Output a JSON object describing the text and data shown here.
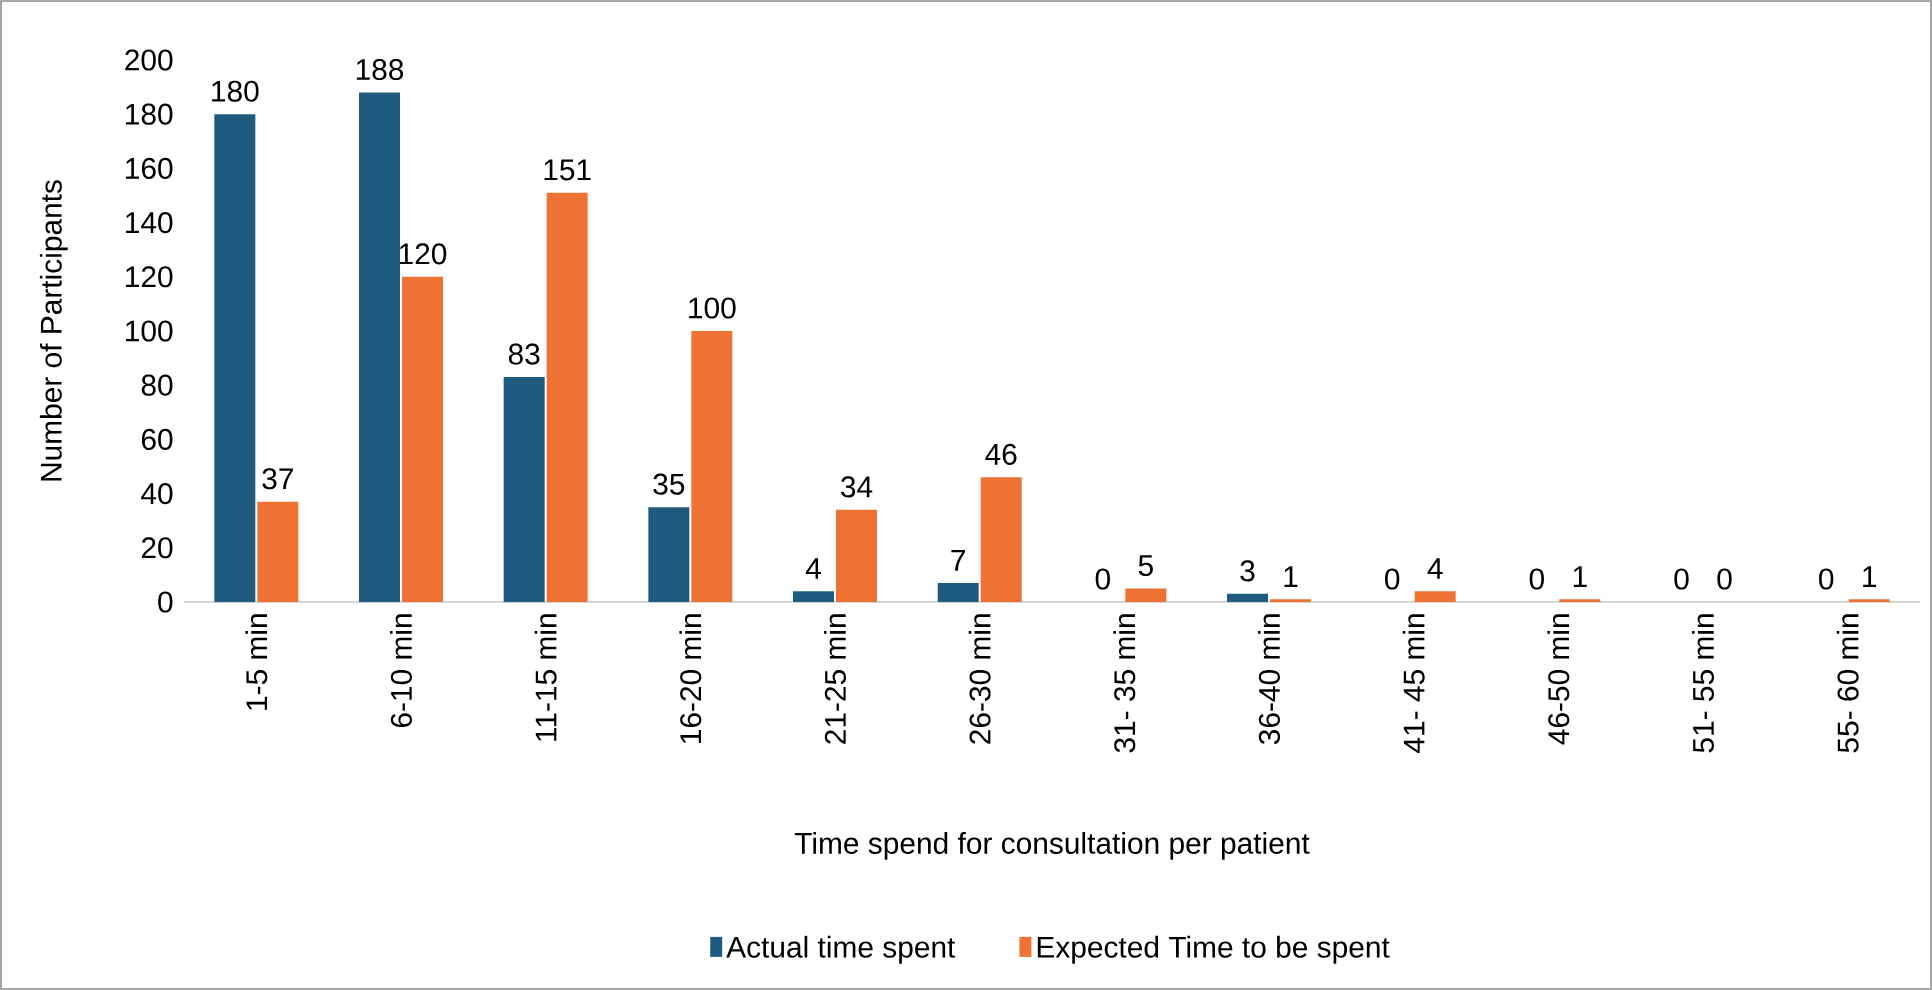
{
  "chart_data": {
    "type": "bar",
    "xlabel": "Time spend for consultation per patient",
    "ylabel": "Number of Participants",
    "categories": [
      "1-5 min",
      "6-10 min",
      "11-15 min",
      "16-20 min",
      "21-25 min",
      "26-30 min",
      "31- 35 min",
      "36-40 min",
      "41- 45 min",
      "46-50 min",
      "51- 55 min",
      "55- 60 min"
    ],
    "series": [
      {
        "name": "Actual time spent",
        "color": "#1f5b7f",
        "values": [
          180,
          188,
          83,
          35,
          4,
          7,
          0,
          3,
          0,
          0,
          0,
          0
        ]
      },
      {
        "name": "Expected Time to be spent",
        "color": "#ed7233",
        "values": [
          37,
          120,
          151,
          100,
          34,
          46,
          5,
          1,
          4,
          1,
          0,
          1
        ]
      }
    ],
    "ylim": [
      0,
      200
    ],
    "yticks": [
      0,
      20,
      40,
      60,
      80,
      100,
      120,
      140,
      160,
      180,
      200
    ],
    "data_labels": true,
    "legend": "bottom",
    "grid": false
  }
}
